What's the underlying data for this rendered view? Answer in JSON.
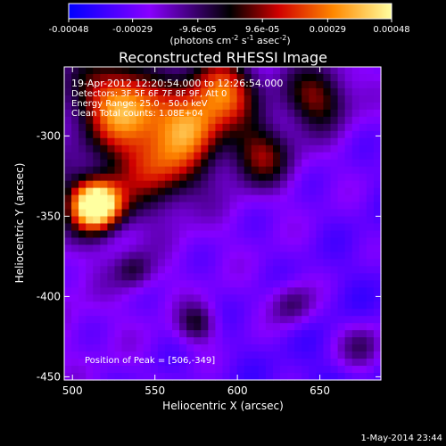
{
  "chart_data": {
    "type": "heatmap",
    "title": "Reconstructed RHESSI Image",
    "xlabel": "Heliocentric X (arcsec)",
    "ylabel": "Heliocentric Y (arcsec)",
    "xlim": [
      495,
      687
    ],
    "ylim": [
      -452,
      -257
    ],
    "x_ticks": [
      500,
      550,
      600,
      650
    ],
    "y_ticks": [
      -300,
      -350,
      -400,
      -450
    ],
    "colorbar": {
      "range": [
        -0.00048,
        0.00048
      ],
      "ticks": [
        "-0.00048",
        "-0.00029",
        "-9.6e-05",
        "9.6e-05",
        "0.00029",
        "0.00048"
      ],
      "unit_prefix": "(photons cm",
      "unit_exp1": "-2",
      "unit_mid": " s",
      "unit_exp2": "-1",
      "unit_mid2": " asec",
      "unit_exp3": "-2",
      "unit_suffix": ")",
      "colors": [
        "#0000ff",
        "#8800ff",
        "#000000",
        "#d00000",
        "#ff8800",
        "#ffffa0"
      ]
    },
    "annotations": {
      "time": "19-Apr-2012 12:20:54.000 to 12:26:54.000",
      "detectors": "Detectors: 3F 5F 6F 7F 8F 9F, Att 0",
      "energy": "Energy Range: 25.0 - 50.0 keV",
      "clean": "Clean     Total counts: 1.08E+04",
      "peak": "Position of Peak = [506,-349]"
    },
    "peak": [
      506,
      -349
    ]
  },
  "footer": {
    "timestamp": "1-May-2014 23:44"
  }
}
